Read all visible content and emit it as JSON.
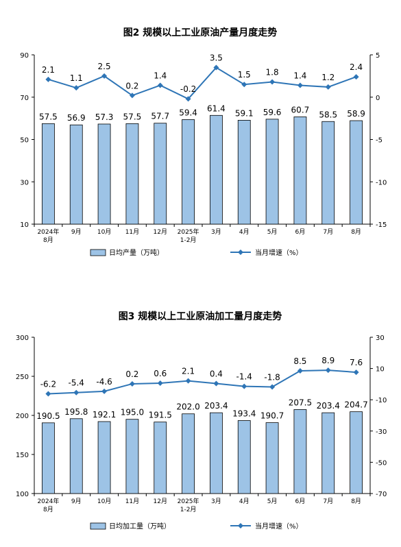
{
  "chart_data": [
    {
      "type": "bar",
      "title": "图2  规模以上工业原油产量月度走势",
      "categories": [
        "2024年\n8月",
        "9月",
        "10月",
        "11月",
        "12月",
        "2025年\n1-2月",
        "3月",
        "4月",
        "5月",
        "6月",
        "7月",
        "8月"
      ],
      "series": [
        {
          "name": "日均产量（万吨）",
          "type": "bar",
          "axis": "left",
          "values": [
            57.5,
            56.9,
            57.3,
            57.5,
            57.7,
            59.4,
            61.4,
            59.1,
            59.6,
            60.7,
            58.5,
            58.9
          ]
        },
        {
          "name": "当月增速（%）",
          "type": "line",
          "axis": "right",
          "values": [
            2.1,
            1.1,
            2.5,
            0.2,
            1.4,
            -0.2,
            3.5,
            1.5,
            1.8,
            1.4,
            1.2,
            2.4
          ]
        }
      ],
      "ylim_left": [
        10,
        90
      ],
      "yticks_left": [
        "90",
        "70",
        "50",
        "30",
        "10"
      ],
      "ylim_right": [
        -15,
        5
      ],
      "yticks_right": [
        "5",
        "0",
        "-5",
        "-10",
        "-15"
      ],
      "legend_placement": "bottom",
      "grid": false
    },
    {
      "type": "bar",
      "title": "图3  规模以上工业原油加工量月度走势",
      "categories": [
        "2024年\n8月",
        "9月",
        "10月",
        "11月",
        "12月",
        "2025年\n1-2月",
        "3月",
        "4月",
        "5月",
        "6月",
        "7月",
        "8月"
      ],
      "series": [
        {
          "name": "日均加工量（万吨）",
          "type": "bar",
          "axis": "left",
          "values": [
            190.5,
            195.8,
            192.1,
            195.0,
            191.5,
            202.0,
            203.4,
            193.4,
            190.7,
            207.5,
            203.4,
            204.7
          ]
        },
        {
          "name": "当月增速（%）",
          "type": "line",
          "axis": "right",
          "values": [
            -6.2,
            -5.4,
            -4.6,
            0.2,
            0.6,
            2.1,
            0.4,
            -1.4,
            -1.8,
            8.5,
            8.9,
            7.6
          ]
        }
      ],
      "ylim_left": [
        100,
        300
      ],
      "yticks_left": [
        "300",
        "250",
        "200",
        "150",
        "100"
      ],
      "ylim_right": [
        -70,
        30
      ],
      "yticks_right": [
        "30",
        "10",
        "-10",
        "-30",
        "-50",
        "-70"
      ],
      "legend_placement": "bottom",
      "grid": false
    }
  ],
  "colors": {
    "bar_fill": "#9dc3e6",
    "bar_stroke": "#000000",
    "line": "#2e75b6",
    "axis": "#000000"
  }
}
